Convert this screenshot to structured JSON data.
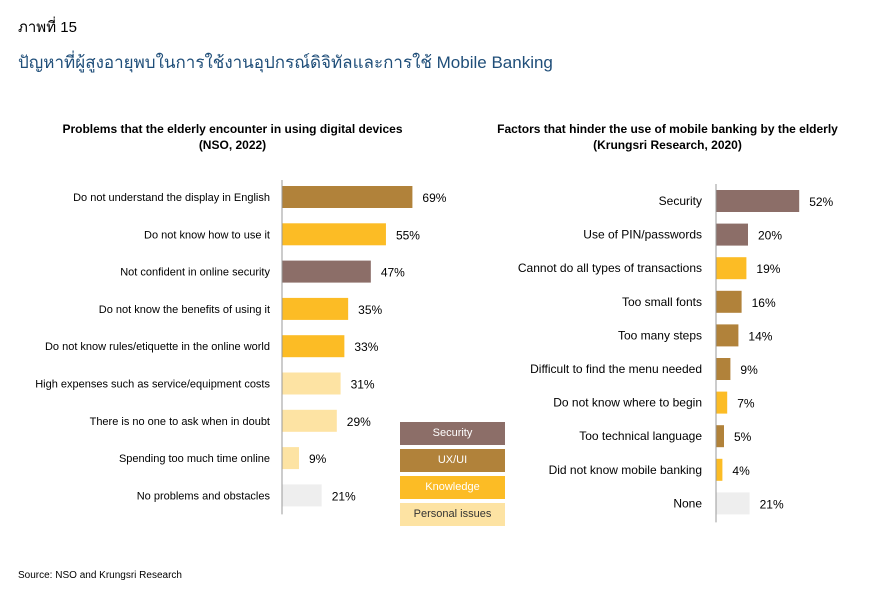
{
  "figure": {
    "label": "ภาพที่ 15",
    "title": "ปัญหาที่ผู้สูงอายุพบในการใช้งานอุปกรณ์ดิจิทัลและการใช้ Mobile Banking",
    "source": "Source: NSO and Krungsri Research"
  },
  "colors": {
    "Security": "#8c6e68",
    "UX/UI": "#b1823a",
    "Knowledge": "#fcbc25",
    "Personal issues": "#fde3a3",
    "None": "#eeeeee"
  },
  "legend": [
    {
      "label": "Security",
      "color": "#8c6e68",
      "text_color": "#ffffff"
    },
    {
      "label": "UX/UI",
      "color": "#b1823a",
      "text_color": "#ffffff"
    },
    {
      "label": "Knowledge",
      "color": "#fcbc25",
      "text_color": "#ffffff"
    },
    {
      "label": "Personal issues",
      "color": "#fde3a3",
      "text_color": "#333333"
    }
  ],
  "chart_data": [
    {
      "type": "bar",
      "orientation": "horizontal",
      "title": "Problems that the elderly encounter in using digital devices",
      "subtitle": "(NSO, 2022)",
      "categories": [
        "Do not understand the display in English",
        "Do not know how to use it",
        "Not confident in online security",
        "Do not know the benefits of using it",
        "Do not know rules/etiquette in the online world",
        "High expenses such as service/equipment costs",
        "There is no one to ask when in doubt",
        "Spending too much time online",
        "No problems and obstacles"
      ],
      "values": [
        69,
        55,
        47,
        35,
        33,
        31,
        29,
        9,
        21
      ],
      "value_labels": [
        "69%",
        "55%",
        "47%",
        "35%",
        "33%",
        "31%",
        "29%",
        "9%",
        "21%"
      ],
      "groups": [
        "UX/UI",
        "Knowledge",
        "Security",
        "Knowledge",
        "Knowledge",
        "Personal issues",
        "Personal issues",
        "Personal issues",
        "None"
      ],
      "xlim": [
        0,
        100
      ]
    },
    {
      "type": "bar",
      "orientation": "horizontal",
      "title": "Factors that hinder the use of mobile banking by the elderly",
      "subtitle": "(Krungsri Research, 2020)",
      "categories": [
        "Security",
        "Use of PIN/passwords",
        "Cannot do all types of transactions",
        "Too small fonts",
        "Too many steps",
        "Difficult to find the menu needed",
        "Do not know where to begin",
        "Too technical language",
        "Did not know mobile banking",
        "None"
      ],
      "values": [
        52,
        20,
        19,
        16,
        14,
        9,
        7,
        5,
        4,
        21
      ],
      "value_labels": [
        "52%",
        "20%",
        "19%",
        "16%",
        "14%",
        "9%",
        "7%",
        "5%",
        "4%",
        "21%"
      ],
      "groups": [
        "Security",
        "Security",
        "Knowledge",
        "UX/UI",
        "UX/UI",
        "UX/UI",
        "Knowledge",
        "UX/UI",
        "Knowledge",
        "None"
      ],
      "xlim": [
        0,
        100
      ]
    }
  ]
}
